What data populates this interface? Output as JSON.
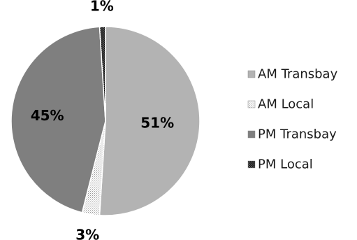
{
  "chart_data": {
    "type": "pie",
    "title": "",
    "legend_position": "right",
    "series": [
      {
        "name": "AM Transbay",
        "value": 51,
        "label": "51%",
        "color": "#b3b3b3",
        "pattern": "solid"
      },
      {
        "name": "AM Local",
        "value": 3,
        "label": "3%",
        "color": "#f2f2f2",
        "pattern": "dotted-light"
      },
      {
        "name": "PM Transbay",
        "value": 45,
        "label": "45%",
        "color": "#7f7f7f",
        "pattern": "solid"
      },
      {
        "name": "PM Local",
        "value": 1,
        "label": "1%",
        "color": "#111111",
        "pattern": "checker-dark"
      }
    ]
  }
}
